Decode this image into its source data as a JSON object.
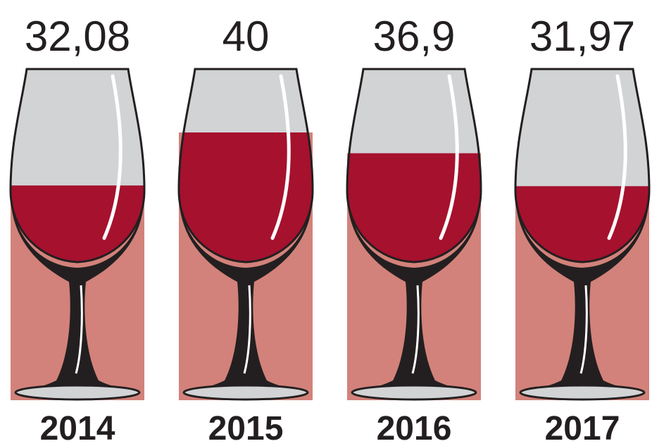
{
  "chart_data": {
    "type": "bar",
    "categories": [
      "2014",
      "2015",
      "2016",
      "2017"
    ],
    "values": [
      32.08,
      40,
      36.9,
      31.97
    ],
    "value_labels": [
      "32,08",
      "40",
      "36,9",
      "31,97"
    ],
    "color": "#d2827a",
    "wine_color": "#a6112e",
    "ylim": [
      0,
      40
    ]
  }
}
